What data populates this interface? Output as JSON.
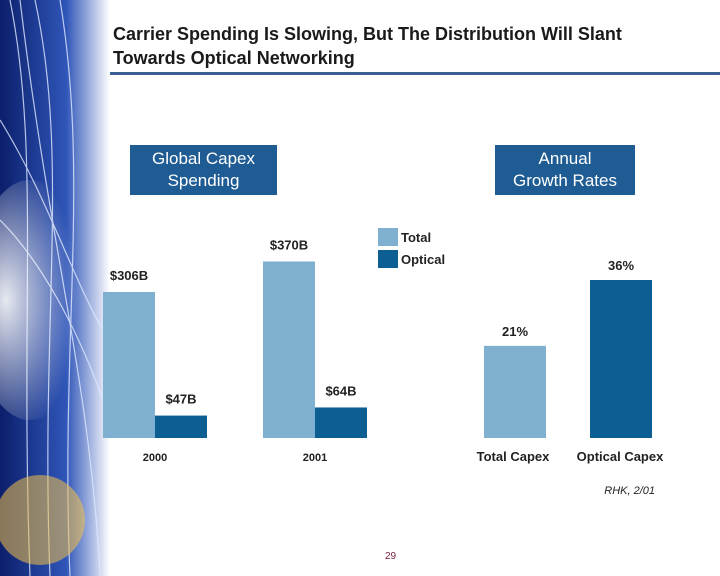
{
  "slide": {
    "title_line1": "Carrier Spending Is Slowing, But The Distribution Will Slant",
    "title_line2": "Towards Optical Networking",
    "left_box_line1": "Global Capex",
    "left_box_line2": "Spending",
    "right_box_line1": "Annual",
    "right_box_line2": "Growth Rates",
    "legend_total": "Total",
    "legend_optical": "Optical",
    "source": "RHK, 2/01",
    "page_number": "29"
  },
  "colors": {
    "total": "#7fb0cf",
    "optical": "#0d5e93",
    "box": "#1f5c93",
    "rule": "#3a5f93"
  },
  "chart_data": [
    {
      "type": "bar",
      "categories": [
        "2000",
        "2001"
      ],
      "series": [
        {
          "name": "Total",
          "values": [
            306,
            370
          ],
          "labels": [
            "$306B",
            "$370B"
          ]
        },
        {
          "name": "Optical",
          "values": [
            47,
            64
          ],
          "labels": [
            "$47B",
            "$64B"
          ]
        }
      ],
      "title": "Global Capex Spending",
      "ylim": [
        0,
        400
      ],
      "grid": false,
      "legend": "top-center"
    },
    {
      "type": "bar",
      "categories": [
        "Total Capex",
        "Optical Capex"
      ],
      "values": [
        21,
        36
      ],
      "labels": [
        "21%",
        "36%"
      ],
      "title": "Annual Growth Rates",
      "ylim": [
        0,
        40
      ],
      "grid": false
    }
  ]
}
